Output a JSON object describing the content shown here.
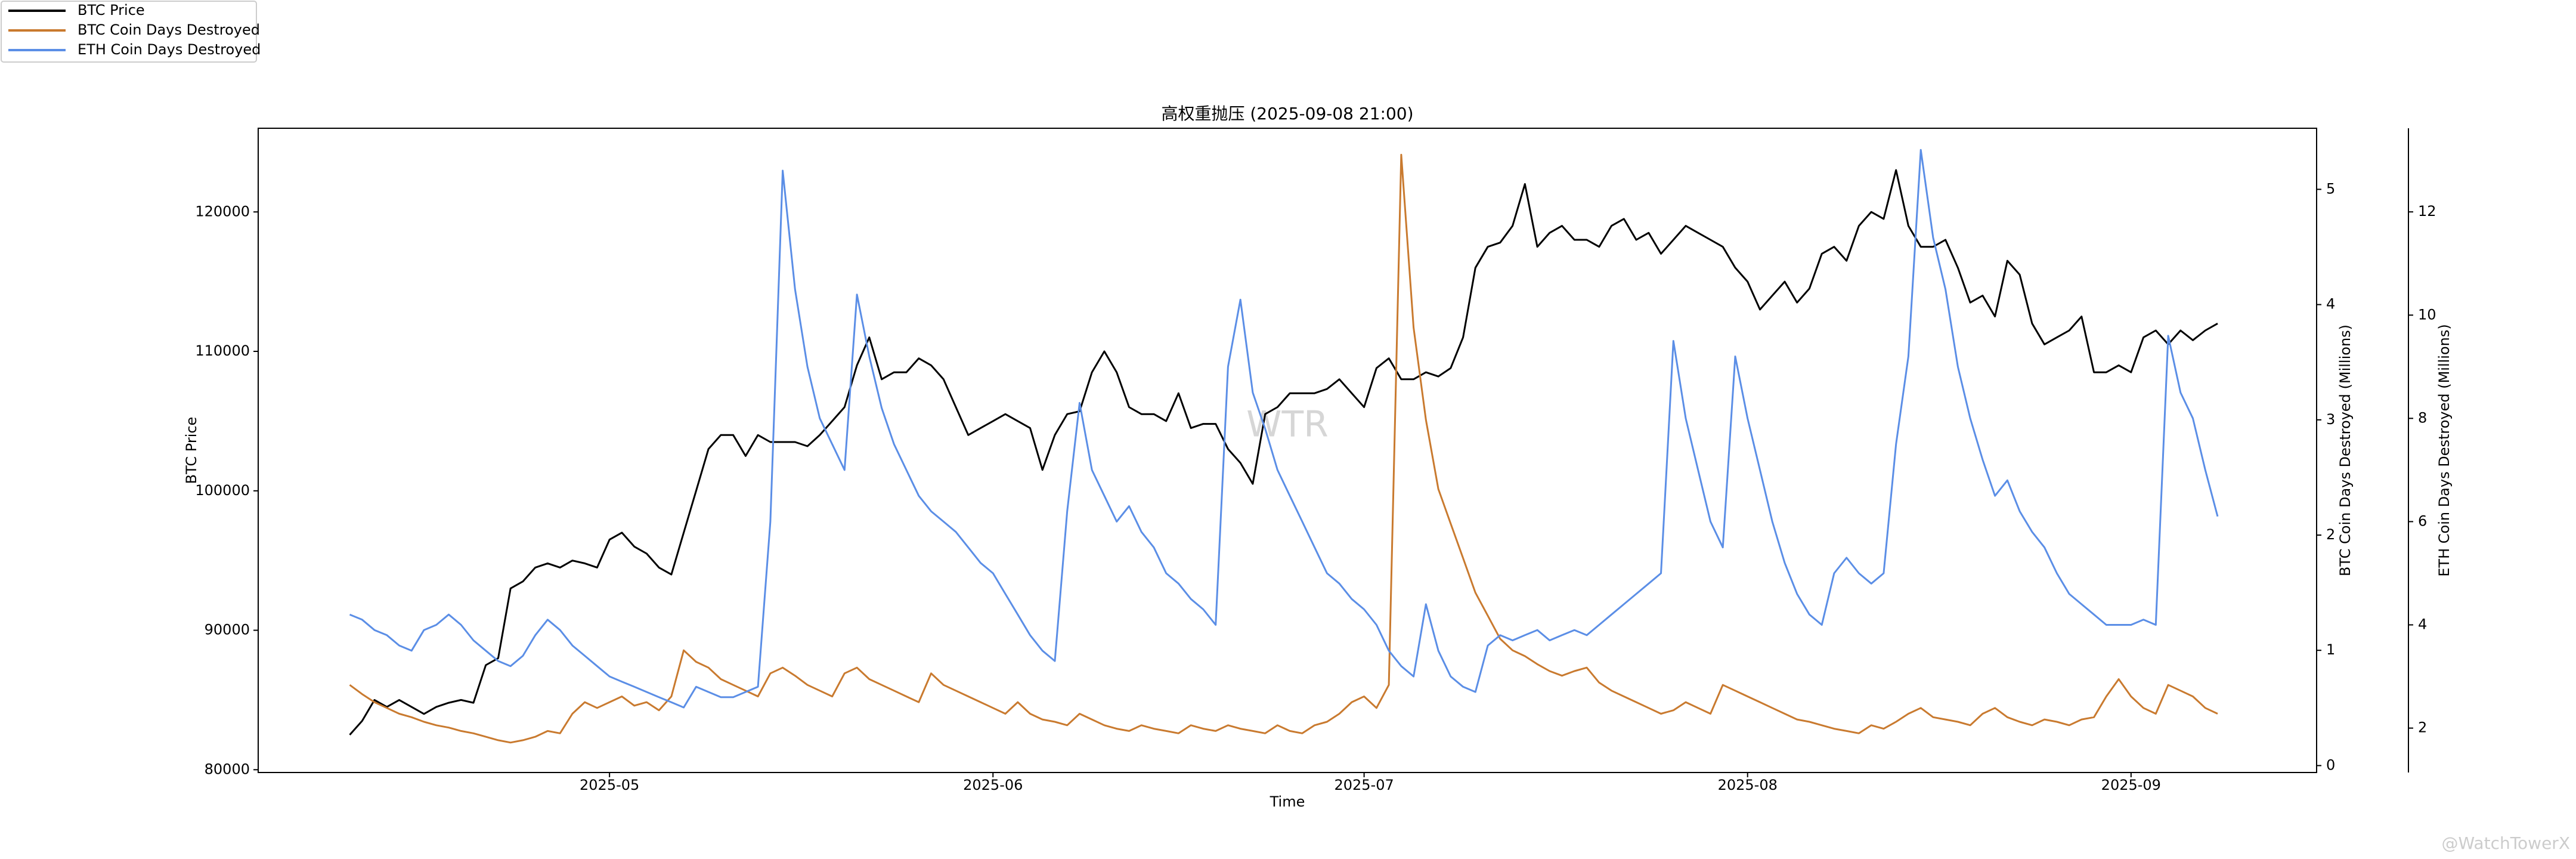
{
  "chart_data": {
    "type": "line",
    "title": "高权重抛压 (2025-09-08 21:00)",
    "xlabel": "Time",
    "ylabel": "BTC Price",
    "y2label": "BTC Coin Days Destroyed (Millions)",
    "y3label": "ETH Coin Days Destroyed (Millions)",
    "annotations": [
      "WTR",
      "@WatchTowerX"
    ],
    "legend": "upper left",
    "categories": [
      null,
      null,
      null,
      null,
      null,
      null,
      null,
      null,
      null,
      null,
      null,
      null,
      null,
      null,
      null,
      null,
      null,
      null,
      null,
      null,
      null,
      "2025-05",
      null,
      null,
      null,
      null,
      null,
      null,
      null,
      null,
      null,
      null,
      null,
      null,
      null,
      null,
      null,
      null,
      null,
      null,
      null,
      null,
      null,
      null,
      null,
      null,
      null,
      null,
      null,
      null,
      null,
      null,
      "2025-06",
      null,
      null,
      null,
      null,
      null,
      null,
      null,
      null,
      null,
      null,
      null,
      null,
      null,
      null,
      null,
      null,
      null,
      null,
      null,
      null,
      null,
      null,
      null,
      null,
      null,
      null,
      null,
      null,
      null,
      "2025-07",
      null,
      null,
      null,
      null,
      null,
      null,
      null,
      null,
      null,
      null,
      null,
      null,
      null,
      null,
      null,
      null,
      null,
      null,
      null,
      null,
      null,
      null,
      null,
      null,
      null,
      null,
      null,
      null,
      null,
      null,
      "2025-08",
      null,
      null,
      null,
      null,
      null,
      null,
      null,
      null,
      null,
      null,
      null,
      null,
      null,
      null,
      null,
      null,
      null,
      null,
      null,
      null,
      null,
      null,
      null,
      null,
      null,
      null,
      null,
      null,
      null,
      null,
      "2025-09",
      null,
      null,
      null,
      null,
      null,
      null,
      null
    ],
    "ylim": [
      79800,
      126000
    ],
    "yticks": [
      80000,
      90000,
      100000,
      110000,
      120000
    ],
    "y2lim": [
      -0.06,
      5.53
    ],
    "y2ticks": [
      0,
      1,
      2,
      3,
      4,
      5
    ],
    "y3lim": [
      1.14,
      13.62
    ],
    "y3ticks": [
      2,
      4,
      6,
      8,
      10,
      12
    ],
    "series": [
      {
        "name": "BTC Price",
        "color": "#000000",
        "axis": "y",
        "values": [
          82500,
          83500,
          85000,
          84500,
          85000,
          84500,
          84000,
          84500,
          84800,
          85000,
          84800,
          87500,
          88000,
          93000,
          93500,
          94500,
          94800,
          94500,
          95000,
          94800,
          94500,
          96500,
          97000,
          96000,
          95500,
          94500,
          94000,
          97000,
          100000,
          103000,
          104000,
          104000,
          102500,
          104000,
          103500,
          103500,
          103500,
          103200,
          104000,
          105000,
          106000,
          109000,
          111000,
          108000,
          108500,
          108500,
          109500,
          109000,
          108000,
          106000,
          104000,
          104500,
          105000,
          105500,
          105000,
          104500,
          101500,
          104000,
          105500,
          105700,
          108500,
          110000,
          108500,
          106000,
          105500,
          105500,
          105000,
          107000,
          104500,
          104800,
          104800,
          103000,
          102000,
          100500,
          105500,
          106000,
          107000,
          107000,
          107000,
          107300,
          108000,
          107000,
          106000,
          108800,
          109500,
          108000,
          108000,
          108500,
          108200,
          108800,
          111000,
          116000,
          117500,
          117800,
          119000,
          122000,
          117500,
          118500,
          119000,
          118000,
          118000,
          117500,
          119000,
          119500,
          118000,
          118500,
          117000,
          118000,
          119000,
          118500,
          118000,
          117500,
          116000,
          115000,
          113000,
          114000,
          115000,
          113500,
          114500,
          117000,
          117500,
          116500,
          119000,
          120000,
          119500,
          123000,
          119000,
          117500,
          117500,
          118000,
          116000,
          113500,
          114000,
          112500,
          116500,
          115500,
          112000,
          110500,
          111000,
          111500,
          112500,
          108500,
          108500,
          109000,
          108500,
          111000,
          111500,
          110500,
          111500,
          110800,
          111500,
          112000
        ]
      },
      {
        "name": "BTC Coin Days Destroyed",
        "color": "#c97a2f",
        "axis": "y2",
        "values": [
          0.7,
          0.62,
          0.55,
          0.5,
          0.45,
          0.42,
          0.38,
          0.35,
          0.33,
          0.3,
          0.28,
          0.25,
          0.22,
          0.2,
          0.22,
          0.25,
          0.3,
          0.28,
          0.45,
          0.55,
          0.5,
          0.55,
          0.6,
          0.52,
          0.55,
          0.48,
          0.6,
          1.0,
          0.9,
          0.85,
          0.75,
          0.7,
          0.65,
          0.6,
          0.8,
          0.85,
          0.78,
          0.7,
          0.65,
          0.6,
          0.8,
          0.85,
          0.75,
          0.7,
          0.65,
          0.6,
          0.55,
          0.8,
          0.7,
          0.65,
          0.6,
          0.55,
          0.5,
          0.45,
          0.55,
          0.45,
          0.4,
          0.38,
          0.35,
          0.45,
          0.4,
          0.35,
          0.32,
          0.3,
          0.35,
          0.32,
          0.3,
          0.28,
          0.35,
          0.32,
          0.3,
          0.35,
          0.32,
          0.3,
          0.28,
          0.35,
          0.3,
          0.28,
          0.35,
          0.38,
          0.45,
          0.55,
          0.6,
          0.5,
          0.7,
          5.3,
          3.8,
          3.0,
          2.4,
          2.1,
          1.8,
          1.5,
          1.3,
          1.1,
          1.0,
          0.95,
          0.88,
          0.82,
          0.78,
          0.82,
          0.85,
          0.72,
          0.65,
          0.6,
          0.55,
          0.5,
          0.45,
          0.48,
          0.55,
          0.5,
          0.45,
          0.7,
          0.65,
          0.6,
          0.55,
          0.5,
          0.45,
          0.4,
          0.38,
          0.35,
          0.32,
          0.3,
          0.28,
          0.35,
          0.32,
          0.38,
          0.45,
          0.5,
          0.42,
          0.4,
          0.38,
          0.35,
          0.45,
          0.5,
          0.42,
          0.38,
          0.35,
          0.4,
          0.38,
          0.35,
          0.4,
          0.42,
          0.6,
          0.75,
          0.6,
          0.5,
          0.45,
          0.7,
          0.65,
          0.6,
          0.5,
          0.45
        ]
      },
      {
        "name": "ETH Coin Days Destroyed",
        "color": "#5b8ee6",
        "axis": "y3",
        "values": [
          4.2,
          4.1,
          3.9,
          3.8,
          3.6,
          3.5,
          3.9,
          4.0,
          4.2,
          4.0,
          3.7,
          3.5,
          3.3,
          3.2,
          3.4,
          3.8,
          4.1,
          3.9,
          3.6,
          3.4,
          3.2,
          3.0,
          2.9,
          2.8,
          2.7,
          2.6,
          2.5,
          2.4,
          2.8,
          2.7,
          2.6,
          2.6,
          2.7,
          2.8,
          6.0,
          12.8,
          10.5,
          9.0,
          8.0,
          7.5,
          7.0,
          10.4,
          9.2,
          8.2,
          7.5,
          7.0,
          6.5,
          6.2,
          6.0,
          5.8,
          5.5,
          5.2,
          5.0,
          4.6,
          4.2,
          3.8,
          3.5,
          3.3,
          6.2,
          8.3,
          7.0,
          6.5,
          6.0,
          6.3,
          5.8,
          5.5,
          5.0,
          4.8,
          4.5,
          4.3,
          4.0,
          9.0,
          10.3,
          8.5,
          7.8,
          7.0,
          6.5,
          6.0,
          5.5,
          5.0,
          4.8,
          4.5,
          4.3,
          4.0,
          3.5,
          3.2,
          3.0,
          4.4,
          3.5,
          3.0,
          2.8,
          2.7,
          3.6,
          3.8,
          3.7,
          3.8,
          3.9,
          3.7,
          3.8,
          3.9,
          3.8,
          4.0,
          4.2,
          4.4,
          4.6,
          4.8,
          5.0,
          9.5,
          8.0,
          7.0,
          6.0,
          5.5,
          9.2,
          8.0,
          7.0,
          6.0,
          5.2,
          4.6,
          4.2,
          4.0,
          5.0,
          5.3,
          5.0,
          4.8,
          5.0,
          7.5,
          9.2,
          13.2,
          11.5,
          10.5,
          9.0,
          8.0,
          7.2,
          6.5,
          6.8,
          6.2,
          5.8,
          5.5,
          5.0,
          4.6,
          4.4,
          4.2,
          4.0,
          4.0,
          4.0,
          4.1,
          4.0,
          9.6,
          8.5,
          8.0,
          7.0,
          6.1
        ]
      }
    ]
  }
}
